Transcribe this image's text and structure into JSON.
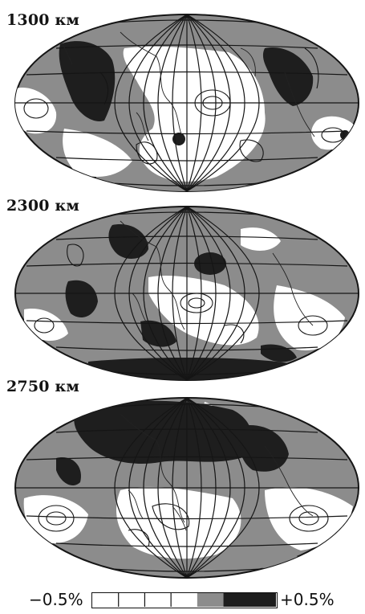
{
  "maps": [
    {
      "id": "m1300",
      "label": "1300 км"
    },
    {
      "id": "m2300",
      "label": "2300 км"
    },
    {
      "id": "m2750",
      "label": "2750 км"
    }
  ],
  "scale": {
    "min_label": "−0.5%",
    "max_label": "+0.5%",
    "swatches": [
      "#ffffff",
      "#ffffff",
      "#ffffff",
      "#ffffff",
      "#8c8c8c",
      "#1e1e1e",
      "#1e1e1e"
    ]
  },
  "colors": {
    "fast": "#1e1e1e",
    "slightly_slow": "#8c8c8c",
    "neutral": "#ffffff",
    "lines": "#151515"
  }
}
